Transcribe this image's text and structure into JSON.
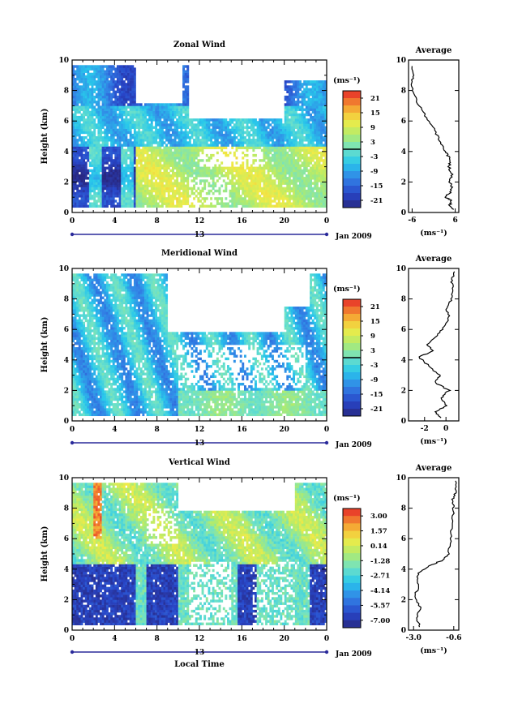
{
  "figure": {
    "shared_xlabel": "Local Time",
    "date_label": "Jan 2009",
    "day_label": "13",
    "unit_label": "(ms⁻¹)",
    "average_title": "Average"
  },
  "chart_data": [
    {
      "type": "heatmap",
      "title": "Zonal Wind",
      "ylabel": "Height (km)",
      "xlabel": "",
      "x_ticks": [
        "0",
        "4",
        "8",
        "12",
        "16",
        "20",
        "0"
      ],
      "y_ticks": [
        "0",
        "2",
        "4",
        "6",
        "8",
        "10"
      ],
      "xlim": [
        0,
        24
      ],
      "ylim": [
        0,
        10
      ],
      "colorbar": {
        "unit": "(ms⁻¹)",
        "ticks": [
          "21",
          "15",
          "9",
          "3",
          "-3",
          "-9",
          "-15",
          "-21"
        ],
        "range": [
          -24,
          24
        ],
        "zero_line_at": 0
      },
      "field_summary": [
        {
          "time_range": [
            0.3,
            24
          ],
          "height_range": [
            7.0,
            9.5
          ],
          "value": -12
        },
        {
          "time_range": [
            0.3,
            24
          ],
          "height_range": [
            4.2,
            7.0
          ],
          "value": -6
        },
        {
          "time_range": [
            0.3,
            6
          ],
          "height_range": [
            0.3,
            4.0
          ],
          "value": -18
        },
        {
          "time_range": [
            6,
            24
          ],
          "height_range": [
            0.3,
            4.0
          ],
          "value": 8
        }
      ],
      "average_profile": {
        "title": "Average",
        "xlabel": "(ms⁻¹)",
        "x_ticks": [
          "-6",
          "6"
        ],
        "xlim": [
          -7,
          7
        ],
        "y_ticks": [
          "0",
          "2",
          "4",
          "6",
          "8",
          "10"
        ],
        "points": [
          [
            5.5,
            0.2
          ],
          [
            4.5,
            0.5
          ],
          [
            5.0,
            0.8
          ],
          [
            3.0,
            1.0
          ],
          [
            4.5,
            1.3
          ],
          [
            5.0,
            1.6
          ],
          [
            4.6,
            2.0
          ],
          [
            5.0,
            2.5
          ],
          [
            4.3,
            3.0
          ],
          [
            4.8,
            3.4
          ],
          [
            3.8,
            3.8
          ],
          [
            3.0,
            4.2
          ],
          [
            1.5,
            4.8
          ],
          [
            0.0,
            5.5
          ],
          [
            -2.0,
            6.2
          ],
          [
            -4.0,
            7.0
          ],
          [
            -5.5,
            7.8
          ],
          [
            -6.0,
            8.4
          ],
          [
            -5.8,
            9.0
          ],
          [
            -6.0,
            9.6
          ]
        ]
      }
    },
    {
      "type": "heatmap",
      "title": "Meridional Wind",
      "ylabel": "Height (km)",
      "xlabel": "",
      "x_ticks": [
        "0",
        "4",
        "8",
        "12",
        "16",
        "20",
        "0"
      ],
      "y_ticks": [
        "0",
        "2",
        "4",
        "6",
        "8",
        "10"
      ],
      "xlim": [
        0,
        24
      ],
      "ylim": [
        0,
        10
      ],
      "colorbar": {
        "unit": "(ms⁻¹)",
        "ticks": [
          "21",
          "15",
          "9",
          "3",
          "-3",
          "-9",
          "-15",
          "-21"
        ],
        "range": [
          -24,
          24
        ],
        "zero_line_at": 0
      },
      "field_summary": [
        {
          "time_range": [
            0.3,
            24
          ],
          "height_range": [
            0.3,
            9.5
          ],
          "value": -5
        },
        {
          "time_range": [
            10,
            24
          ],
          "height_range": [
            0.3,
            2.0
          ],
          "value": 2
        }
      ],
      "average_profile": {
        "title": "Average",
        "xlabel": "(ms⁻¹)",
        "x_ticks": [
          "-2",
          "0"
        ],
        "xlim": [
          -3.5,
          1.2
        ],
        "y_ticks": [
          "0",
          "2",
          "4",
          "6",
          "8",
          "10"
        ],
        "points": [
          [
            -0.5,
            0.2
          ],
          [
            -1.0,
            0.6
          ],
          [
            0.0,
            1.0
          ],
          [
            -0.5,
            1.5
          ],
          [
            0.3,
            2.0
          ],
          [
            -1.0,
            2.5
          ],
          [
            -0.6,
            3.0
          ],
          [
            -1.6,
            3.6
          ],
          [
            -2.5,
            4.2
          ],
          [
            -1.2,
            4.6
          ],
          [
            -1.8,
            5.0
          ],
          [
            -0.8,
            5.6
          ],
          [
            -0.2,
            6.2
          ],
          [
            0.3,
            6.8
          ],
          [
            0.0,
            7.4
          ],
          [
            0.5,
            8.0
          ],
          [
            0.7,
            8.6
          ],
          [
            0.5,
            9.2
          ],
          [
            0.8,
            9.8
          ]
        ]
      }
    },
    {
      "type": "heatmap",
      "title": "Vertical Wind",
      "ylabel": "Height (km)",
      "xlabel": "Local Time",
      "x_ticks": [
        "0",
        "4",
        "8",
        "12",
        "16",
        "20",
        "0"
      ],
      "y_ticks": [
        "0",
        "2",
        "4",
        "6",
        "8",
        "10"
      ],
      "xlim": [
        0,
        24
      ],
      "ylim": [
        0,
        10
      ],
      "colorbar": {
        "unit": "(ms⁻¹)",
        "ticks": [
          "3.00",
          "1.57",
          "0.14",
          "-1.28",
          "-2.71",
          "-4.14",
          "-5.57",
          "-7.00"
        ],
        "range": [
          -7.7,
          3.7
        ]
      },
      "field_summary": [
        {
          "time_range": [
            0.3,
            24
          ],
          "height_range": [
            4.5,
            9.6
          ],
          "value": -1.0
        },
        {
          "time_range": [
            0.3,
            24
          ],
          "height_range": [
            0.3,
            4.5
          ],
          "value": -6.0
        }
      ],
      "average_profile": {
        "title": "Average",
        "xlabel": "(ms⁻¹)",
        "x_ticks": [
          "-3.0",
          "-0.6"
        ],
        "xlim": [
          -3.3,
          -0.3
        ],
        "y_ticks": [
          "0",
          "2",
          "4",
          "6",
          "8",
          "10"
        ],
        "points": [
          [
            -2.6,
            0.2
          ],
          [
            -2.8,
            0.8
          ],
          [
            -2.6,
            1.5
          ],
          [
            -2.9,
            2.2
          ],
          [
            -2.7,
            3.0
          ],
          [
            -2.8,
            3.6
          ],
          [
            -2.4,
            4.0
          ],
          [
            -1.9,
            4.3
          ],
          [
            -1.2,
            4.6
          ],
          [
            -0.9,
            5.0
          ],
          [
            -0.8,
            6.0
          ],
          [
            -0.7,
            7.0
          ],
          [
            -0.6,
            8.0
          ],
          [
            -0.7,
            8.5
          ],
          [
            -0.5,
            9.0
          ],
          [
            -0.5,
            9.8
          ]
        ]
      }
    }
  ]
}
